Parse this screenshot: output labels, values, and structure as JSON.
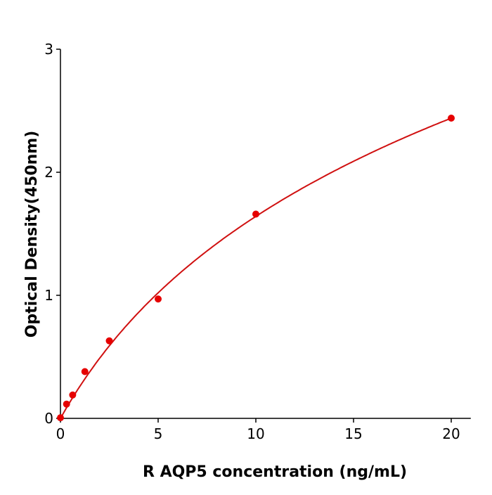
{
  "chart_data": {
    "type": "scatter",
    "title": "",
    "xlabel": "R  AQP5 concentration (ng/mL)",
    "ylabel": "Optical Density(450nm)",
    "xlim": [
      0,
      21
    ],
    "ylim": [
      0,
      3
    ],
    "xticks": [
      0,
      5,
      10,
      15,
      20
    ],
    "yticks": [
      0,
      1,
      2,
      3
    ],
    "xtick_labels": [
      "0",
      "5",
      "10",
      "15",
      "20"
    ],
    "ytick_labels": [
      "0",
      "1",
      "2",
      "3"
    ],
    "grid": false,
    "color": "#e60000",
    "curve_color": "#d01010",
    "points": [
      {
        "x": 0,
        "y": 0.005
      },
      {
        "x": 0.3125,
        "y": 0.116
      },
      {
        "x": 0.625,
        "y": 0.19
      },
      {
        "x": 1.25,
        "y": 0.38
      },
      {
        "x": 2.5,
        "y": 0.63
      },
      {
        "x": 5,
        "y": 0.97
      },
      {
        "x": 10,
        "y": 1.66
      },
      {
        "x": 20,
        "y": 2.44
      }
    ],
    "fit_curve": true
  }
}
